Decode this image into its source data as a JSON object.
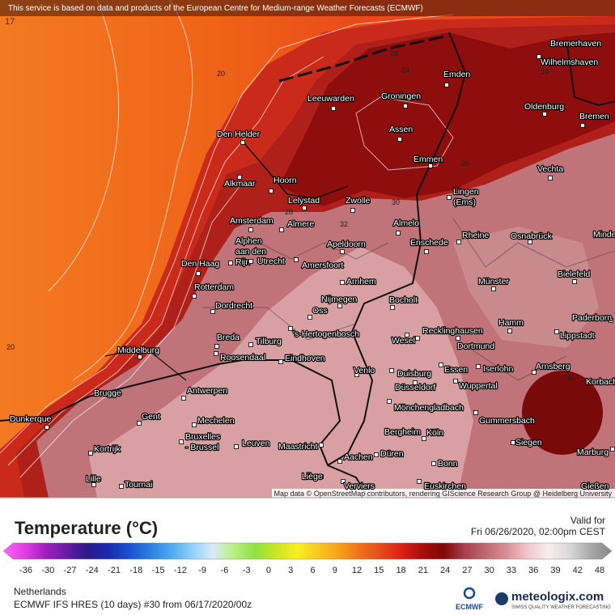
{
  "header": {
    "notice": "This service is based on data and products of the European Centre for Medium-range Weather Forecasts (ECMWF)",
    "corner": "17"
  },
  "map": {
    "attribution": "Map data © OpenStreetMap contributors, rendering GIScience Research Group @ Heidelberg University",
    "cities": [
      [
        "Bremerhaven"
      ],
      [
        "Wilhelmshaven"
      ],
      [
        "Emden"
      ],
      [
        "Oldenburg"
      ],
      [
        "Bremen"
      ],
      [
        "Leeuwarden"
      ],
      [
        "Groningen"
      ],
      [
        "Assen"
      ],
      [
        "Emmen"
      ],
      [
        "Den Helder"
      ],
      [
        "Vechta"
      ],
      [
        "Alkmaar"
      ],
      [
        "Hoorn"
      ],
      [
        "Lelystad"
      ],
      [
        "Zwolle"
      ],
      [
        "Lingen",
        "(Ems)"
      ],
      [
        "Amsterdam"
      ],
      [
        "Almere"
      ],
      [
        "Almelo"
      ],
      [
        "Rheine"
      ],
      [
        "Osnabrück"
      ],
      [
        "Minden"
      ],
      [
        "Alphen",
        "aan den",
        "Rijn"
      ],
      [
        "Apeldoorn"
      ],
      [
        "Enschede"
      ],
      [
        "Utrecht"
      ],
      [
        "Amersfoort"
      ],
      [
        "Bielefeld"
      ],
      [
        "Den Haag"
      ],
      [
        "Arnhem"
      ],
      [
        "Münster"
      ],
      [
        "Rotterdam"
      ],
      [
        "Nijmegen"
      ],
      [
        "Bocholt"
      ],
      [
        "Dordrecht"
      ],
      [
        "Oss"
      ],
      [
        "Hamm"
      ],
      [
        "Paderborn"
      ],
      [
        "Recklinghausen"
      ],
      [
        "Lippstadt"
      ],
      [
        "Breda"
      ],
      [
        "Tilburg"
      ],
      [
        "'s-Hertogenbosch"
      ],
      [
        "Wesel"
      ],
      [
        "Dortmund"
      ],
      [
        "Middelburg"
      ],
      [
        "Roosendaal"
      ],
      [
        "Eindhoven"
      ],
      [
        "Arnsberg"
      ],
      [
        "Korbach"
      ],
      [
        "Venlo"
      ],
      [
        "Duisburg"
      ],
      [
        "Essen"
      ],
      [
        "Iserlohn"
      ],
      [
        "Wuppertal"
      ],
      [
        "Düsseldorf"
      ],
      [
        "Brugge"
      ],
      [
        "Antwerpen"
      ],
      [
        "Mönchengladbach"
      ],
      [
        "Gent"
      ],
      [
        "Gummersbach"
      ],
      [
        "Dunkerque"
      ],
      [
        "Mechelen"
      ],
      [
        "Bergheim"
      ],
      [
        "Köln"
      ],
      [
        "Bruxelles",
        "- Brussel"
      ],
      [
        "Leuven"
      ],
      [
        "Maastricht"
      ],
      [
        "Siegen"
      ],
      [
        "Marburg"
      ],
      [
        "Kortrijk"
      ],
      [
        "Düren"
      ],
      [
        "Aachen"
      ],
      [
        "Bonn"
      ],
      [
        "Lille"
      ],
      [
        "Liège"
      ],
      [
        "Tournai"
      ],
      [
        "Verviers"
      ],
      [
        "Euskirchen"
      ],
      [
        "Gießen"
      ]
    ],
    "isotherm_labels": [
      "20",
      "20",
      "24",
      "28",
      "24",
      "26",
      "28",
      "30",
      "32",
      "30"
    ]
  },
  "legend": {
    "title": "Temperature (°C)",
    "ticks": [
      "-36",
      "-30",
      "-27",
      "-24",
      "-21",
      "-18",
      "-15",
      "-12",
      "-9",
      "-6",
      "-3",
      "0",
      "3",
      "6",
      "9",
      "12",
      "15",
      "18",
      "21",
      "24",
      "27",
      "30",
      "33",
      "36",
      "39",
      "42",
      "48"
    ]
  },
  "valid": {
    "label": "Valid for",
    "time": "Fri 06/26/2020, 02:00pm CEST"
  },
  "footer": {
    "region": "Netherlands",
    "model": "ECMWF IFS HRES (10 days) #30 from 06/17/2020/00z",
    "ecmwf": "ECMWF",
    "brand": "meteologix.com",
    "tagline": "SWISS QUALITY WEATHER FORECASTING"
  }
}
